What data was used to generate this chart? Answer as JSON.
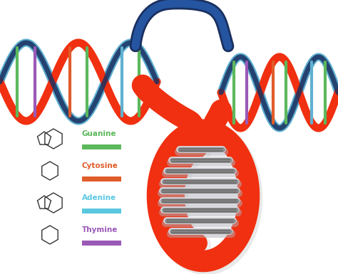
{
  "bg_color": "#ffffff",
  "nucleotide_labels": [
    "Guanine",
    "Cytosine",
    "Adenine",
    "Thymine"
  ],
  "nucleotide_colors": [
    "#5cb85c",
    "#e05c2a",
    "#5bc8e0",
    "#9b59b6"
  ],
  "dna_red": "#f03010",
  "dna_dark_blue": "#1a3060",
  "dna_light_blue": "#60b0d0",
  "rung_color": "#909090",
  "rung_highlight": "#d8d8e0",
  "shadow_color": "#c0c0c8"
}
